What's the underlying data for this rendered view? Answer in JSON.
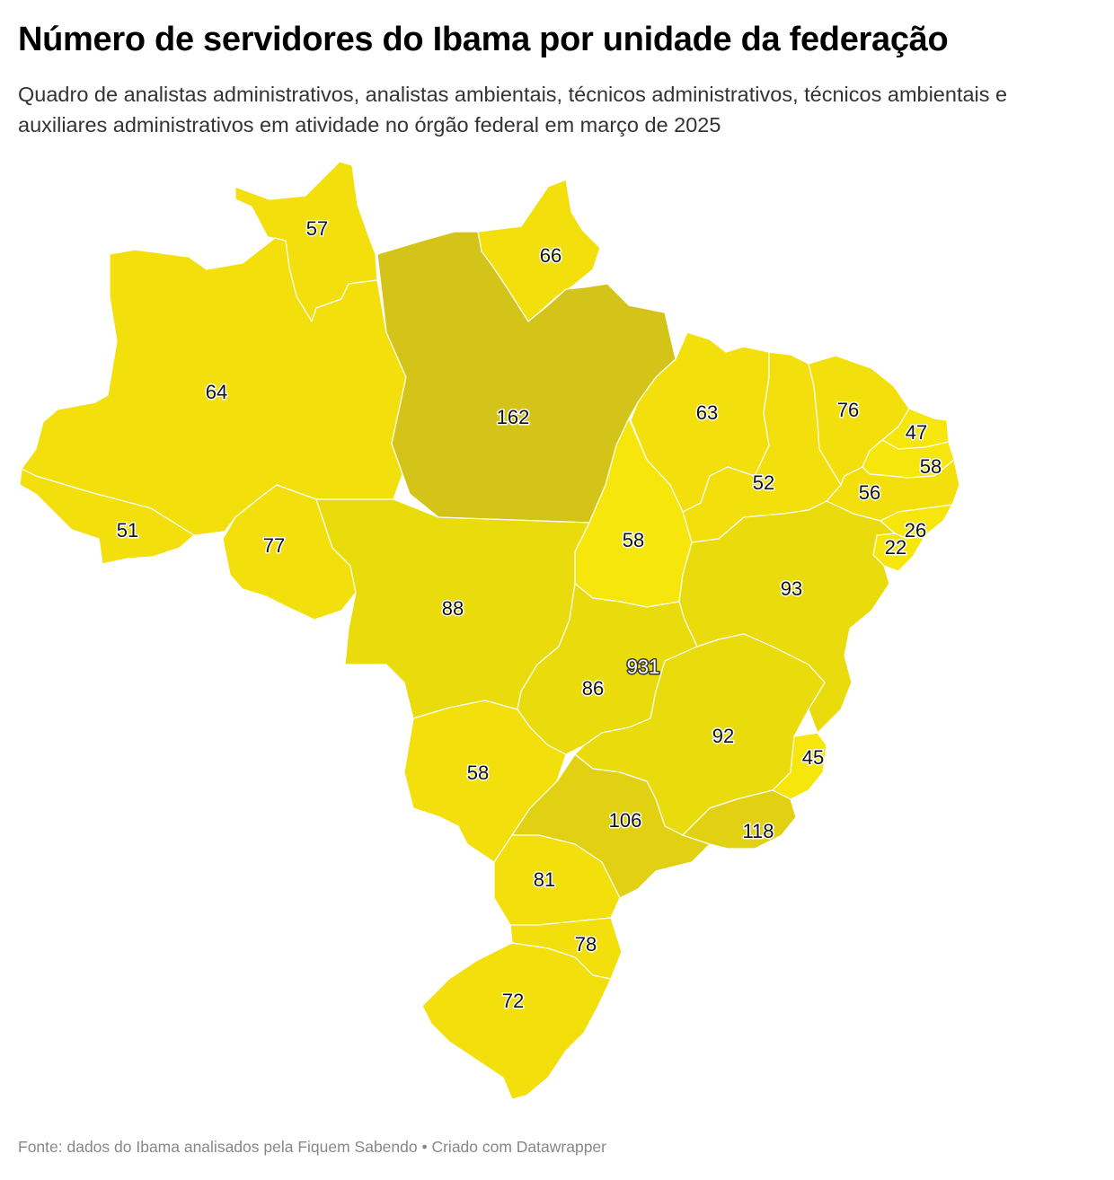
{
  "title": "Número de servidores do Ibama por unidade da federação",
  "subtitle": "Quadro de analistas administrativos, analistas ambientais, técnicos administrativos, técnicos ambientais e auxiliares administrativos em atividade no órgão federal em março de 2025",
  "footer": "Fonte: dados do Ibama analisados pela Fiquem Sabendo • Criado com Datawrapper",
  "colors": {
    "low": "#f7e60b",
    "high": "#d4c419",
    "background": "#ffffff"
  },
  "states": [
    {
      "label": "57"
    },
    {
      "label": "66"
    },
    {
      "label": "64"
    },
    {
      "label": "162"
    },
    {
      "label": "63"
    },
    {
      "label": "76"
    },
    {
      "label": "47"
    },
    {
      "label": "58"
    },
    {
      "label": "52"
    },
    {
      "label": "56"
    },
    {
      "label": "51"
    },
    {
      "label": "26"
    },
    {
      "label": "22"
    },
    {
      "label": "77"
    },
    {
      "label": "58"
    },
    {
      "label": "93"
    },
    {
      "label": "88"
    },
    {
      "label": "931"
    },
    {
      "label": "86"
    },
    {
      "label": "92"
    },
    {
      "label": "45"
    },
    {
      "label": "58"
    },
    {
      "label": "106"
    },
    {
      "label": "118"
    },
    {
      "label": "81"
    },
    {
      "label": "78"
    },
    {
      "label": "72"
    }
  ]
}
